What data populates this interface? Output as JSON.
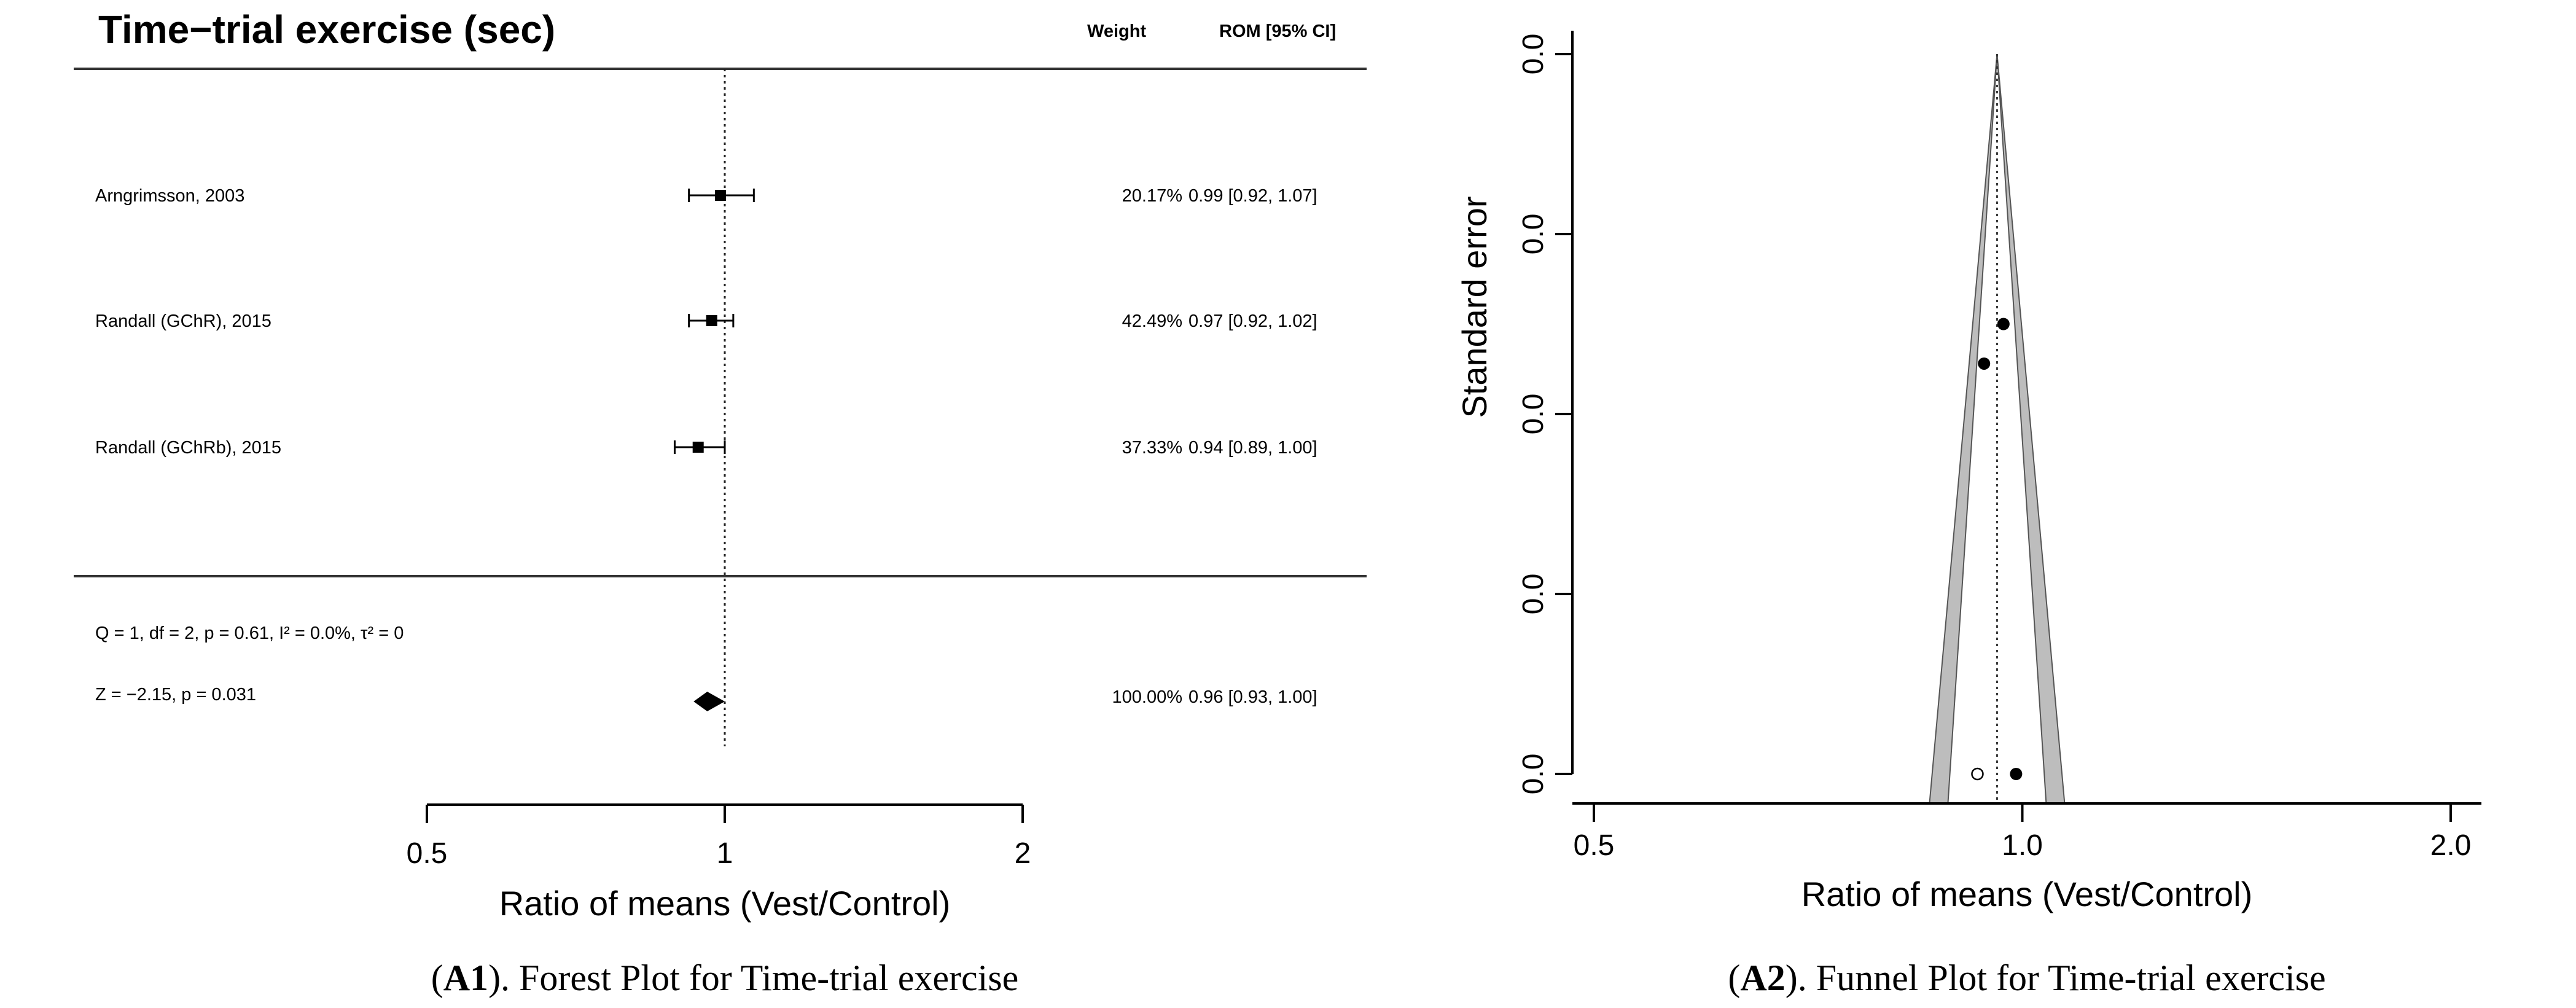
{
  "chart_data": [
    {
      "type": "forest",
      "title": "Time−trial exercise (sec)",
      "col_weight_header": "Weight",
      "col_rom_header": "ROM [95% CI]",
      "xlabel": "Ratio of means (Vest/Control)",
      "xscale": "log",
      "xlim": [
        0.5,
        2
      ],
      "xticks": [
        "0.5",
        "1",
        "2"
      ],
      "reference_line": 1,
      "studies": [
        {
          "label": "Arngrimsson, 2003",
          "rom": 0.99,
          "ci_low": 0.92,
          "ci_high": 1.07,
          "weight_text": "20.17%",
          "rom_text": "0.99 [0.92, 1.07]"
        },
        {
          "label": "Randall (GChR), 2015",
          "rom": 0.97,
          "ci_low": 0.92,
          "ci_high": 1.02,
          "weight_text": "42.49%",
          "rom_text": "0.97 [0.92, 1.02]"
        },
        {
          "label": "Randall (GChRb), 2015",
          "rom": 0.94,
          "ci_low": 0.89,
          "ci_high": 1.0,
          "weight_text": "37.33%",
          "rom_text": "0.94 [0.89, 1.00]"
        }
      ],
      "heterogeneity_text": "Q = 1, df = 2, p = 0.61, I² = 0.0%, τ² =   0",
      "z_text": "Z = −2.15, p = 0.031",
      "pooled": {
        "rom": 0.96,
        "ci_low": 0.93,
        "ci_high": 1.0,
        "weight_text": "100.00%",
        "rom_text": "0.96 [0.93, 1.00]"
      },
      "caption_label": "A1",
      "caption_text": "). Forest Plot for Time-trial exercise"
    },
    {
      "type": "funnel",
      "xlabel": "Ratio of means (Vest/Control)",
      "ylabel": "Standard error",
      "xscale": "log",
      "xlim": [
        0.5,
        2.0
      ],
      "xticks": [
        "0.5",
        "1.0",
        "2.0"
      ],
      "yticks": [
        "0.0",
        "0.0",
        "0.0",
        "0.0",
        "0.0"
      ],
      "center": 0.96,
      "points_filled": [
        {
          "x": 0.99,
          "se_fraction": 0.0
        },
        {
          "x": 0.97,
          "se_fraction": 0.0
        },
        {
          "x": 0.94,
          "se_fraction": 0.0
        }
      ],
      "points_filled_level": [
        0.0,
        0.625,
        0.57
      ],
      "points_open_level": [
        0.0
      ],
      "points_open": [
        {
          "x": 0.93
        }
      ],
      "caption_label": "A2",
      "caption_text": "). Funnel Plot for Time-trial exercise"
    }
  ]
}
